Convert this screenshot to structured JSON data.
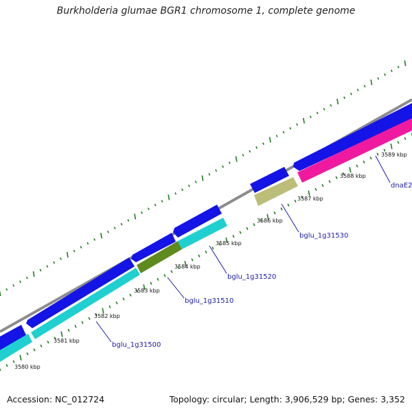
{
  "header": {
    "title": "Burkholderia glumae BGR1 chromosome 1, complete genome"
  },
  "footer": {
    "accession": "Accession: NC_012724",
    "summary": "Topology: circular; Length: 3,906,529 bp; Genes: 3,352"
  },
  "colors": {
    "backbone": "#8c8c8c",
    "forward_cds": "#1414e6",
    "reverse_cds": "#20d0d0",
    "olive_feature": "#5f8a1e",
    "khaki_feature": "#bdbd7a",
    "pink_feature": "#f01aa0",
    "tick": "#1f7a1f",
    "gene_label": "#1a1aa8"
  },
  "ruler": {
    "unit": "kbp",
    "labels": [
      "3580 kbp",
      "3581 kbp",
      "3582 kbp",
      "3583 kbp",
      "3584 kbp",
      "3585 kbp",
      "3586 kbp",
      "3587 kbp",
      "3588 kbp",
      "3589 kbp"
    ]
  },
  "gene_labels": [
    "bglu_1g31500",
    "bglu_1g31510",
    "bglu_1g31520",
    "bglu_1g31530",
    "dnaE2"
  ]
}
